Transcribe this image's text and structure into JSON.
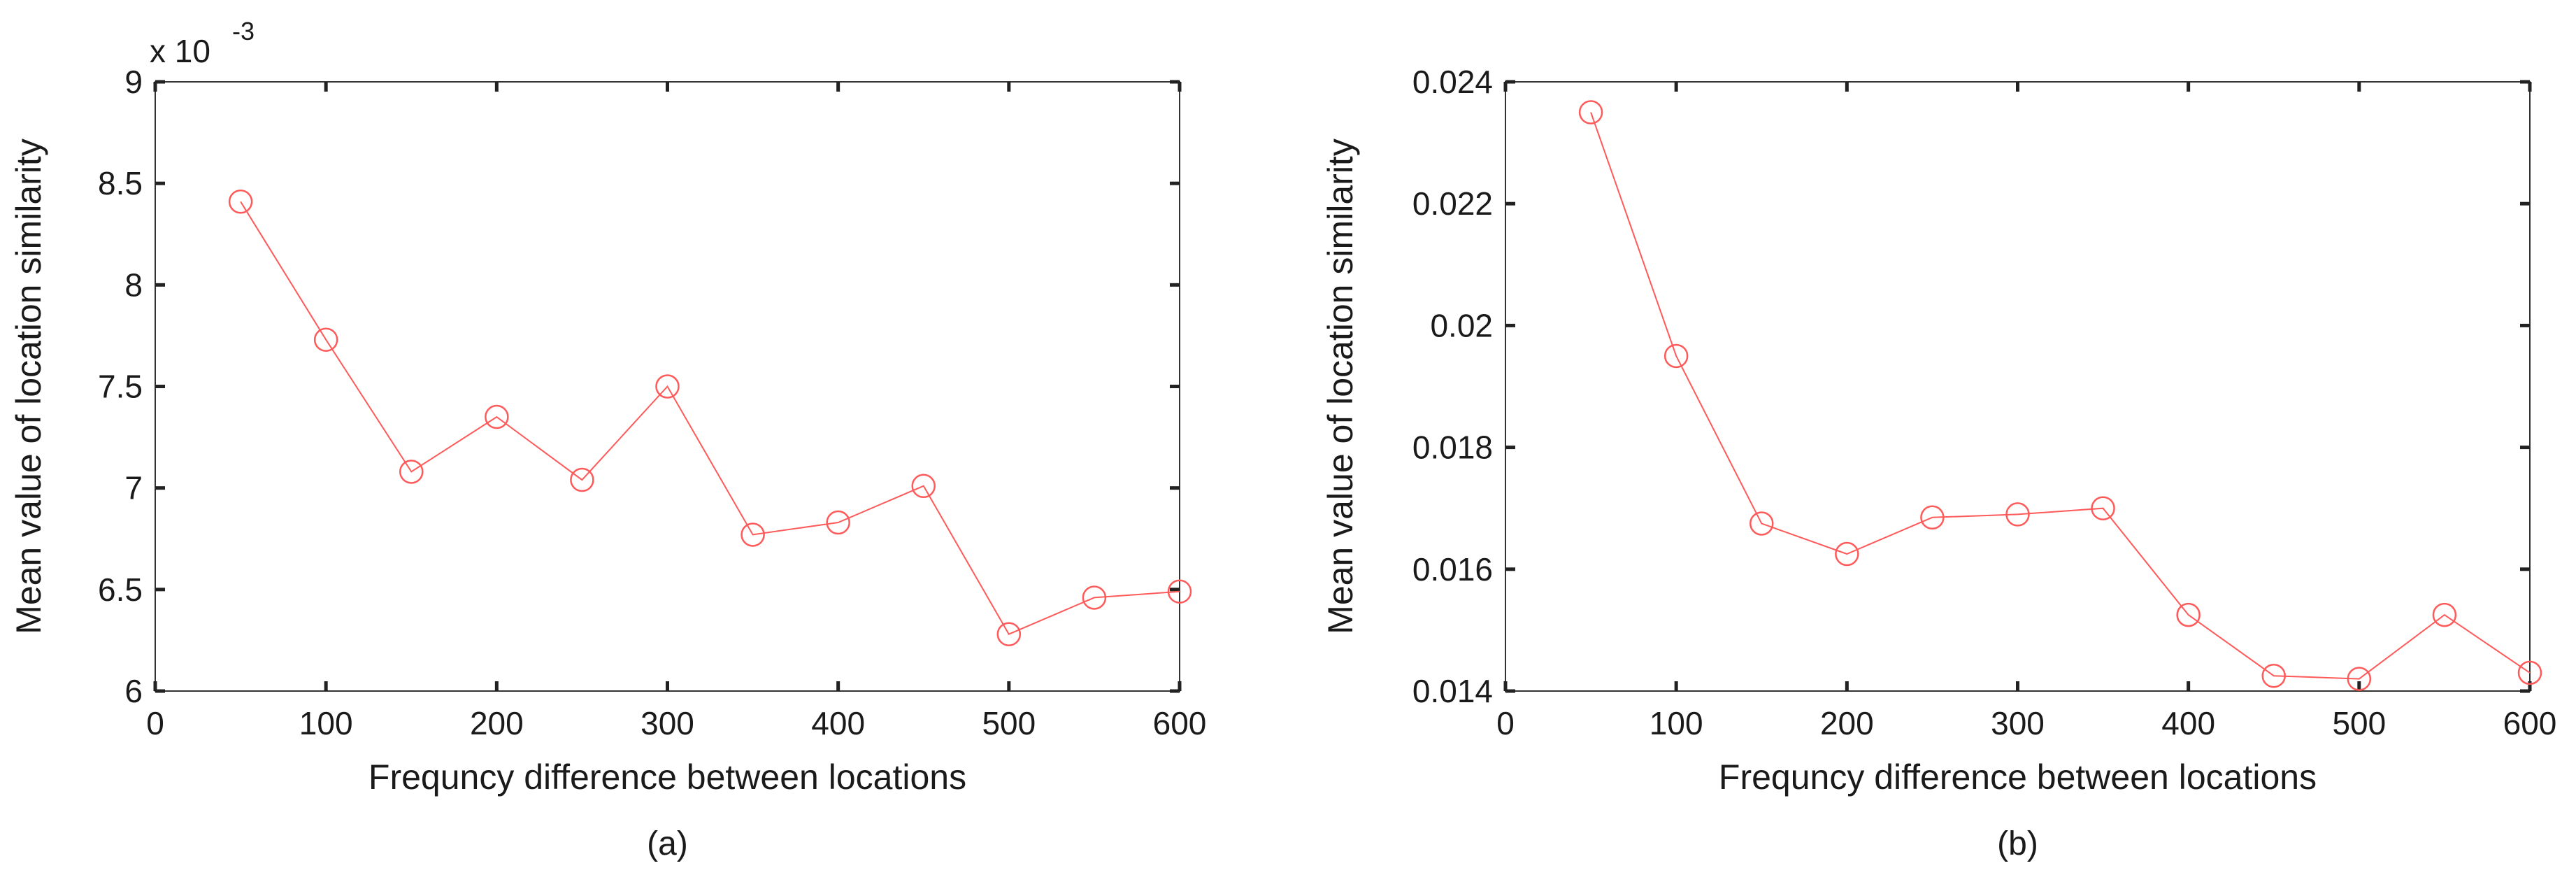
{
  "chart_data": [
    {
      "type": "line",
      "caption": "(a)",
      "xlabel": "Frequncy difference between locations",
      "ylabel": "Mean value of location similarity",
      "y_exponent_label": "x 10",
      "y_exponent_power": "-3",
      "xlim": [
        0,
        600
      ],
      "ylim": [
        6,
        9
      ],
      "xticks": [
        0,
        100,
        200,
        300,
        400,
        500,
        600
      ],
      "yticks": [
        6,
        6.5,
        7,
        7.5,
        8,
        8.5,
        9
      ],
      "ytick_labels": [
        "6",
        "6.5",
        "7",
        "7.5",
        "8",
        "8.5",
        "9"
      ],
      "grid": false,
      "color": "#ff5a5a",
      "marker": "circle",
      "series": [
        {
          "x": [
            50,
            100,
            150,
            200,
            250,
            300,
            350,
            400,
            450,
            500,
            550,
            600
          ],
          "values": [
            8.41,
            7.73,
            7.08,
            7.35,
            7.04,
            7.5,
            6.77,
            6.83,
            7.01,
            6.28,
            6.46,
            6.49
          ]
        }
      ]
    },
    {
      "type": "line",
      "caption": "(b)",
      "xlabel": "Frequncy difference between locations",
      "ylabel": "Mean value of location similarity",
      "xlim": [
        0,
        600
      ],
      "ylim": [
        0.014,
        0.024
      ],
      "xticks": [
        0,
        100,
        200,
        300,
        400,
        500,
        600
      ],
      "yticks": [
        0.014,
        0.016,
        0.018,
        0.02,
        0.022,
        0.024
      ],
      "ytick_labels": [
        "0.014",
        "0.016",
        "0.018",
        "0.02",
        "0.022",
        "0.024"
      ],
      "grid": false,
      "color": "#ff5a5a",
      "marker": "circle",
      "series": [
        {
          "x": [
            50,
            100,
            150,
            200,
            250,
            300,
            350,
            400,
            450,
            500,
            550,
            600
          ],
          "values": [
            0.0235,
            0.0195,
            0.01675,
            0.01625,
            0.01685,
            0.0169,
            0.017,
            0.01525,
            0.01425,
            0.0142,
            0.01525,
            0.0143
          ]
        }
      ]
    }
  ]
}
